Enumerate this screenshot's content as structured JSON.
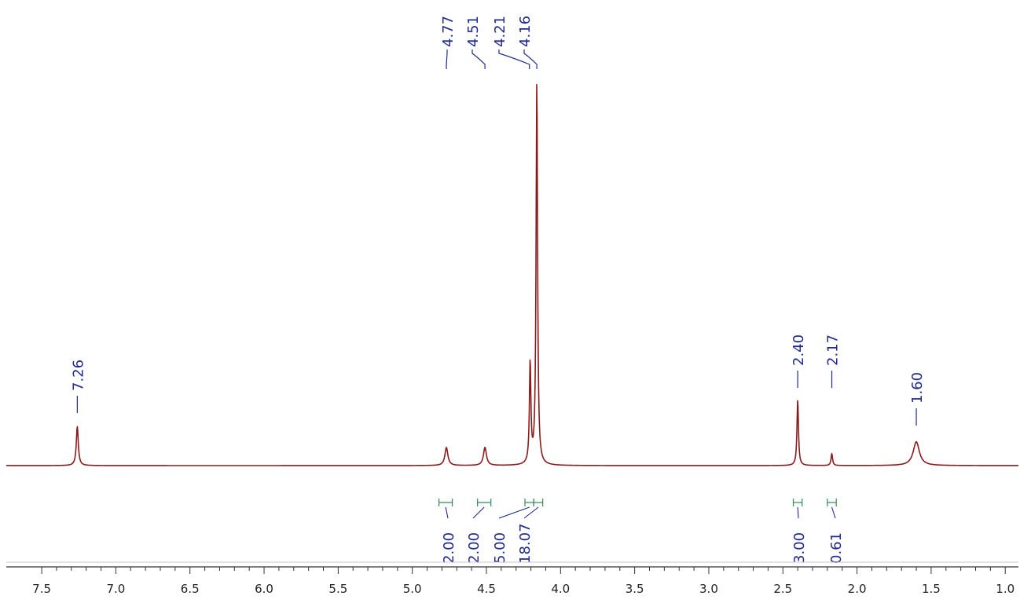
{
  "colors": {
    "spectrum": "#8b1a1a",
    "peak_label": "#1f2a8c",
    "integral_mark": "#2e8b57",
    "axis": "#333333"
  },
  "chart_data": {
    "type": "line",
    "title": "",
    "xlabel": "",
    "ylabel": "",
    "x_reversed": true,
    "xlim": [
      7.58,
      0.98
    ],
    "ylim": [
      0,
      1
    ],
    "grid": false,
    "legend": "none",
    "x_ticks": [
      "7.5",
      "7.0",
      "6.5",
      "6.0",
      "5.5",
      "5.0",
      "4.5",
      "4.0",
      "3.5",
      "3.0",
      "2.5",
      "2.0",
      "1.5",
      "1.0"
    ],
    "peaks": [
      {
        "shift": 7.26,
        "height": 0.102,
        "width": 0.008
      },
      {
        "shift": 4.77,
        "height": 0.047,
        "width": 0.012
      },
      {
        "shift": 4.51,
        "height": 0.047,
        "width": 0.012
      },
      {
        "shift": 4.205,
        "height": 0.262,
        "width": 0.006
      },
      {
        "shift": 4.16,
        "height": 1.0,
        "width": 0.006
      },
      {
        "shift": 2.4,
        "height": 0.171,
        "width": 0.006
      },
      {
        "shift": 2.17,
        "height": 0.031,
        "width": 0.006
      },
      {
        "shift": 1.6,
        "height": 0.062,
        "width": 0.025
      }
    ],
    "peak_labels": [
      {
        "text": "7.26",
        "shift": 7.26
      },
      {
        "text": "4.77",
        "shift": 4.77
      },
      {
        "text": "4.51",
        "shift": 4.51
      },
      {
        "text": "4.21",
        "shift": 4.21
      },
      {
        "text": "4.16",
        "shift": 4.16
      },
      {
        "text": "2.40",
        "shift": 2.4
      },
      {
        "text": "2.17",
        "shift": 2.17
      },
      {
        "text": "1.60",
        "shift": 1.6
      }
    ],
    "integrals": [
      {
        "value": "2.00",
        "from": 4.82,
        "to": 4.73
      },
      {
        "value": "2.00",
        "from": 4.56,
        "to": 4.47
      },
      {
        "value": "5.00",
        "from": 4.24,
        "to": 4.18
      },
      {
        "value": "18.07",
        "from": 4.18,
        "to": 4.12
      },
      {
        "value": "3.00",
        "from": 2.43,
        "to": 2.37
      },
      {
        "value": "0.61",
        "from": 2.2,
        "to": 2.14
      }
    ]
  }
}
